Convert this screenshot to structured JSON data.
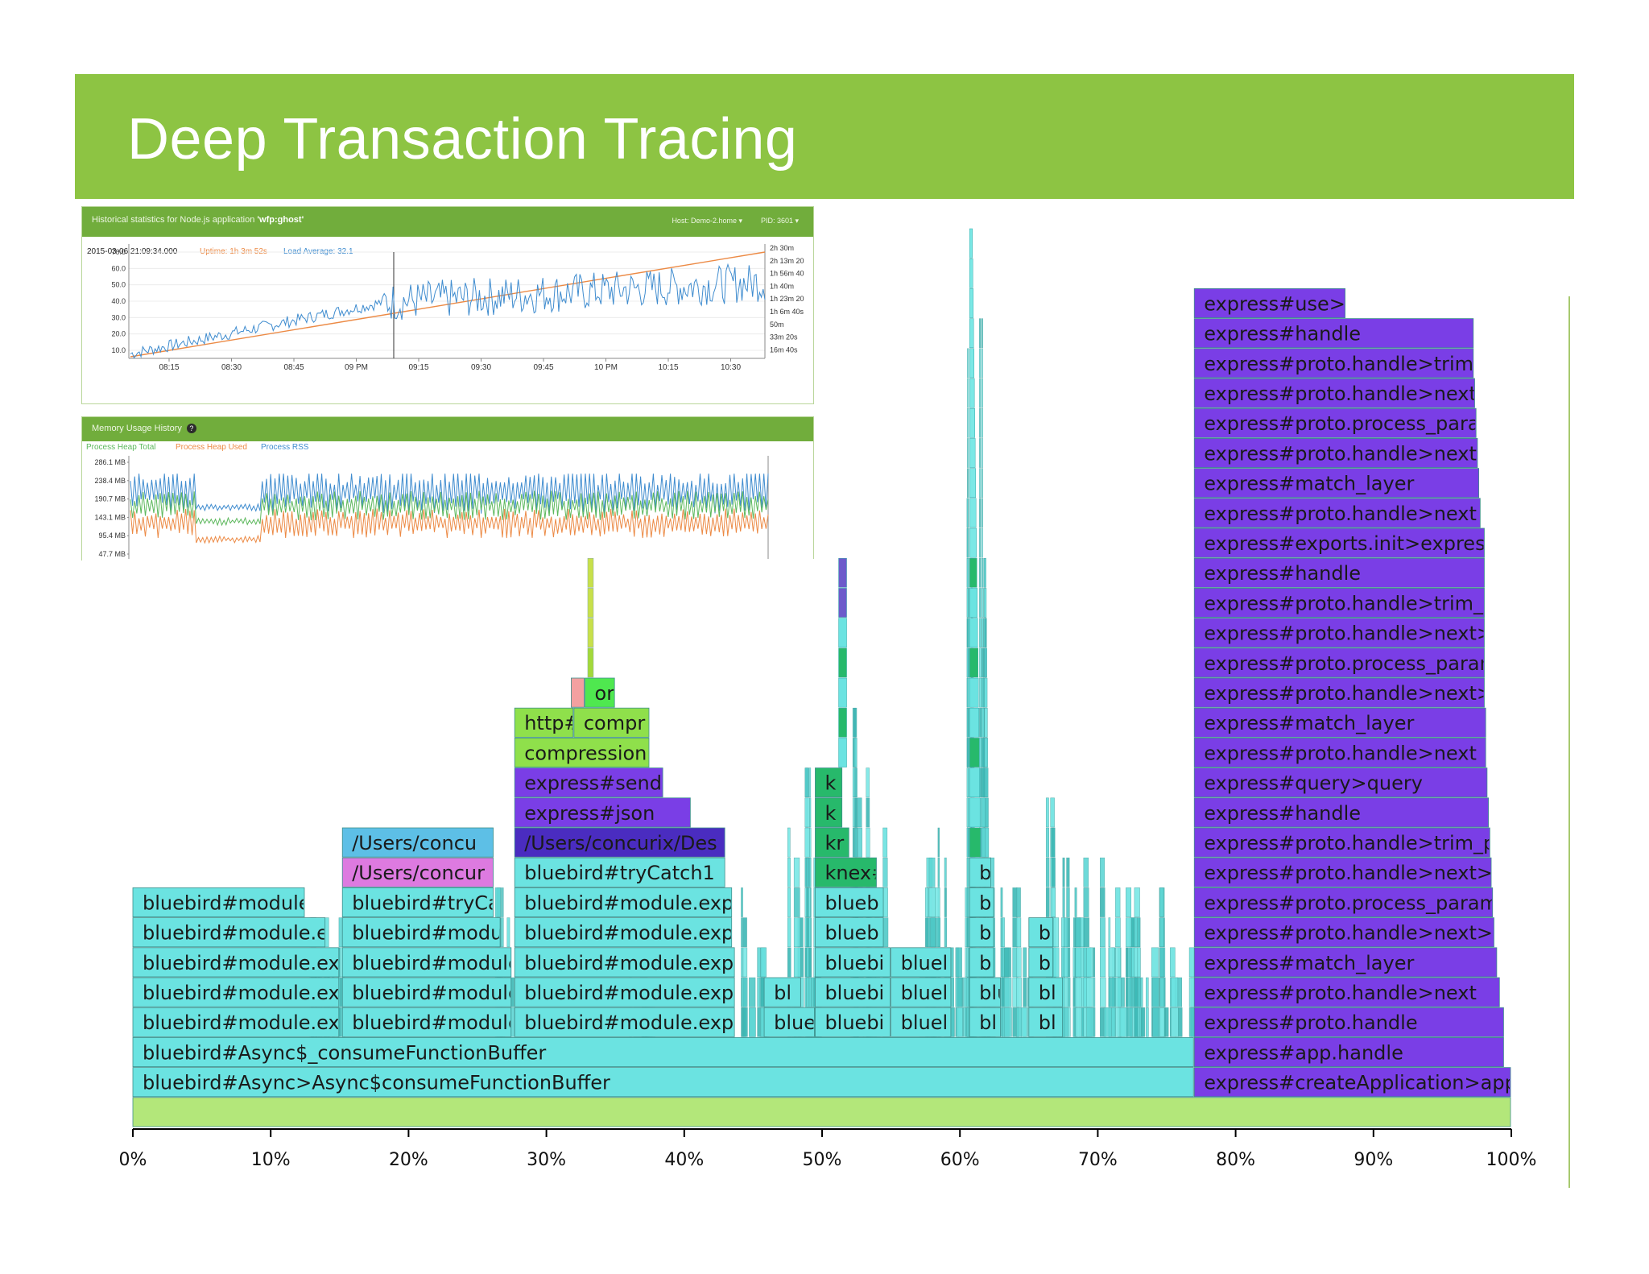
{
  "slide": {
    "title": "Deep Transaction Tracing"
  },
  "cpu_panel": {
    "header_text": "Historical statistics for Node.js application ",
    "app_name": "'wfp:ghost'",
    "host": "Host: Demo-2.home ▾",
    "pid": "PID: 3601 ▾",
    "timestamp": "2015-03-06 21:09:34.000",
    "uptime": "Uptime: 1h 3m 52s",
    "load": "Load Average: 32.1"
  },
  "memory_panel": {
    "title": "Memory Usage History",
    "legend": [
      "Process Heap Total",
      "Process Heap Used",
      "Process RSS"
    ]
  },
  "chart_data": [
    {
      "type": "line",
      "y_ticks": [
        "70.0",
        "60.0",
        "50.0",
        "40.0",
        "30.0",
        "20.0",
        "10.0"
      ],
      "y2_ticks": [
        "2h 30m",
        "2h 13m 20",
        "1h 56m 40",
        "1h 40m",
        "1h 23m 20",
        "1h 6m 40s",
        "50m",
        "33m 20s",
        "16m 40s"
      ],
      "x_ticks": [
        "08:15",
        "08:30",
        "08:45",
        "09 PM",
        "09:15",
        "09:30",
        "09:45",
        "10 PM",
        "10:15",
        "10:30"
      ],
      "ylim": [
        0,
        70
      ],
      "series": [
        {
          "name": "Load Average",
          "color": "#3f8ccf"
        },
        {
          "name": "Uptime",
          "color": "#ec8a45"
        }
      ]
    },
    {
      "type": "line",
      "y_ticks": [
        "286.1 MB",
        "238.4 MB",
        "190.7 MB",
        "143.1 MB",
        "95.4 MB",
        "47.7 MB"
      ],
      "series": [
        {
          "name": "Process Heap Total",
          "color": "#5cb85c"
        },
        {
          "name": "Process Heap Used",
          "color": "#ec8a45"
        },
        {
          "name": "Process RSS",
          "color": "#3f8ccf"
        }
      ]
    },
    {
      "type": "flame",
      "x_ticks": [
        "0%",
        "10%",
        "20%",
        "30%",
        "40%",
        "50%",
        "60%",
        "70%",
        "80%",
        "90%",
        "100%"
      ],
      "frames": [
        {
          "label": "",
          "x0": 0,
          "x1": 100,
          "depth": 0,
          "color": "#b3e77a"
        },
        {
          "label": "bluebird#Async>Async$consumeFunctionBuffer",
          "x0": 0,
          "x1": 77,
          "depth": 1,
          "color": "#6be3e1"
        },
        {
          "label": "bluebird#Async$_consumeFunctionBuffer",
          "x0": 0,
          "x1": 77,
          "depth": 2,
          "color": "#6be3e1"
        },
        {
          "label": "bluebird#module.ex|",
          "x0": 0,
          "x1": 15,
          "depth": 3,
          "color": "#6be3e1"
        },
        {
          "label": "bluebird#module.ex",
          "x0": 0,
          "x1": 15,
          "depth": 4,
          "color": "#6be3e1"
        },
        {
          "label": "bluebird#module.ex",
          "x0": 0,
          "x1": 15,
          "depth": 5,
          "color": "#6be3e1"
        },
        {
          "label": "bluebird#module.e",
          "x0": 0,
          "x1": 14,
          "depth": 6,
          "color": "#6be3e1"
        },
        {
          "label": "bluebird#module",
          "x0": 0,
          "x1": 12.5,
          "depth": 7,
          "color": "#6be3e1"
        },
        {
          "label": "bluebird#module",
          "x0": 15.2,
          "x1": 27.5,
          "depth": 3,
          "color": "#6be3e1"
        },
        {
          "label": "bluebird#module",
          "x0": 15.2,
          "x1": 27.5,
          "depth": 4,
          "color": "#6be3e1"
        },
        {
          "label": "bluebird#module",
          "x0": 15.2,
          "x1": 27.5,
          "depth": 5,
          "color": "#6be3e1"
        },
        {
          "label": "bluebird#modu",
          "x0": 15.2,
          "x1": 26.7,
          "depth": 6,
          "color": "#6be3e1"
        },
        {
          "label": "bluebird#tryCa",
          "x0": 15.2,
          "x1": 26.2,
          "depth": 7,
          "color": "#6be3e1"
        },
        {
          "label": "/Users/concur",
          "x0": 15.2,
          "x1": 26.2,
          "depth": 8,
          "color": "#dd7ae0"
        },
        {
          "label": "/Users/concu",
          "x0": 15.2,
          "x1": 26.2,
          "depth": 9,
          "color": "#5dbfe6"
        },
        {
          "label": "bluebird#module.exp",
          "x0": 27.7,
          "x1": 43.7,
          "depth": 3,
          "color": "#6be3e1"
        },
        {
          "label": "bluebird#module.exp",
          "x0": 27.7,
          "x1": 43.7,
          "depth": 4,
          "color": "#6be3e1"
        },
        {
          "label": "bluebird#module.exp",
          "x0": 27.7,
          "x1": 43.7,
          "depth": 5,
          "color": "#6be3e1"
        },
        {
          "label": "bluebird#module.exp",
          "x0": 27.7,
          "x1": 43.5,
          "depth": 6,
          "color": "#6be3e1"
        },
        {
          "label": "bluebird#module.exp",
          "x0": 27.7,
          "x1": 43.5,
          "depth": 7,
          "color": "#6be3e1"
        },
        {
          "label": "bluebird#tryCatch1",
          "x0": 27.7,
          "x1": 43,
          "depth": 8,
          "color": "#6be3e1"
        },
        {
          "label": "/Users/concurix/Des",
          "x0": 27.7,
          "x1": 43,
          "depth": 9,
          "color": "#4a2cc0"
        },
        {
          "label": "express#json",
          "x0": 27.7,
          "x1": 40.5,
          "depth": 10,
          "color": "#7a3ee6"
        },
        {
          "label": "express#send",
          "x0": 27.7,
          "x1": 38.5,
          "depth": 11,
          "color": "#7a3ee6"
        },
        {
          "label": "compression",
          "x0": 27.7,
          "x1": 37.5,
          "depth": 12,
          "color": "#8fe04b"
        },
        {
          "label": "http#",
          "x0": 27.7,
          "x1": 32,
          "depth": 13,
          "color": "#8fe04b"
        },
        {
          "label": "compr",
          "x0": 32,
          "x1": 37.5,
          "depth": 13,
          "color": "#8fe04b"
        },
        {
          "label": "",
          "x0": 31.8,
          "x1": 32.8,
          "depth": 14,
          "color": "#f3a0a0"
        },
        {
          "label": "or",
          "x0": 32.8,
          "x1": 35,
          "depth": 14,
          "color": "#4fe84f"
        },
        {
          "label": "blue",
          "x0": 45.8,
          "x1": 49.5,
          "depth": 3,
          "color": "#6be3e1"
        },
        {
          "label": "bl",
          "x0": 45.8,
          "x1": 48.5,
          "depth": 4,
          "color": "#6be3e1"
        },
        {
          "label": "bluebi",
          "x0": 49.5,
          "x1": 55,
          "depth": 3,
          "color": "#6be3e1"
        },
        {
          "label": "bluebi",
          "x0": 49.5,
          "x1": 55,
          "depth": 4,
          "color": "#6be3e1"
        },
        {
          "label": "bluebi",
          "x0": 49.5,
          "x1": 55,
          "depth": 5,
          "color": "#6be3e1"
        },
        {
          "label": "blueb",
          "x0": 49.5,
          "x1": 54.5,
          "depth": 6,
          "color": "#6be3e1"
        },
        {
          "label": "blueb",
          "x0": 49.5,
          "x1": 54.5,
          "depth": 7,
          "color": "#6be3e1"
        },
        {
          "label": "knex#",
          "x0": 49.5,
          "x1": 54,
          "depth": 8,
          "color": "#27b96b"
        },
        {
          "label": "kr",
          "x0": 49.5,
          "x1": 52,
          "depth": 9,
          "color": "#27b96b"
        },
        {
          "label": "k",
          "x0": 49.5,
          "x1": 51.5,
          "depth": 10,
          "color": "#27b96b"
        },
        {
          "label": "k",
          "x0": 49.5,
          "x1": 51.5,
          "depth": 11,
          "color": "#27b96b"
        },
        {
          "label": "bluel",
          "x0": 55,
          "x1": 59.4,
          "depth": 3,
          "color": "#6be3e1"
        },
        {
          "label": "bluel",
          "x0": 55,
          "x1": 59.4,
          "depth": 4,
          "color": "#6be3e1"
        },
        {
          "label": "bluel",
          "x0": 55,
          "x1": 59.4,
          "depth": 5,
          "color": "#6be3e1"
        },
        {
          "label": "bl",
          "x0": 60.7,
          "x1": 63,
          "depth": 3,
          "color": "#6be3e1"
        },
        {
          "label": "blu",
          "x0": 60.7,
          "x1": 63,
          "depth": 4,
          "color": "#6be3e1"
        },
        {
          "label": "bl",
          "x0": 60.7,
          "x1": 62.5,
          "depth": 5,
          "color": "#6be3e1"
        },
        {
          "label": "bl",
          "x0": 60.7,
          "x1": 62.5,
          "depth": 6,
          "color": "#6be3e1"
        },
        {
          "label": "bl",
          "x0": 60.7,
          "x1": 62.5,
          "depth": 7,
          "color": "#6be3e1"
        },
        {
          "label": "b",
          "x0": 60.7,
          "x1": 62.3,
          "depth": 8,
          "color": "#6be3e1"
        },
        {
          "label": "bl",
          "x0": 65,
          "x1": 67.5,
          "depth": 3,
          "color": "#6be3e1"
        },
        {
          "label": "bl",
          "x0": 65,
          "x1": 67.5,
          "depth": 4,
          "color": "#6be3e1"
        },
        {
          "label": "b",
          "x0": 65,
          "x1": 66.8,
          "depth": 5,
          "color": "#6be3e1"
        },
        {
          "label": "b",
          "x0": 65,
          "x1": 66.8,
          "depth": 6,
          "color": "#6be3e1"
        },
        {
          "label": "express#createApplication>app",
          "x0": 77,
          "x1": 100,
          "depth": 1,
          "color": "#7a3ee6"
        },
        {
          "label": "express#app.handle",
          "x0": 77,
          "x1": 99.5,
          "depth": 2,
          "color": "#7a3ee6"
        },
        {
          "label": "express#proto.handle",
          "x0": 77,
          "x1": 99.5,
          "depth": 3,
          "color": "#7a3ee6"
        },
        {
          "label": "express#proto.handle>next",
          "x0": 77,
          "x1": 99.2,
          "depth": 4,
          "color": "#7a3ee6"
        },
        {
          "label": "express#match_layer",
          "x0": 77,
          "x1": 99,
          "depth": 5,
          "color": "#7a3ee6"
        },
        {
          "label": "express#proto.handle>next>s",
          "x0": 77,
          "x1": 98.8,
          "depth": 6,
          "color": "#7a3ee6"
        },
        {
          "label": "express#proto.process_param",
          "x0": 77,
          "x1": 98.7,
          "depth": 7,
          "color": "#7a3ee6"
        },
        {
          "label": "express#proto.handle>next>s",
          "x0": 77,
          "x1": 98.6,
          "depth": 8,
          "color": "#7a3ee6"
        },
        {
          "label": "express#proto.handle>trim_p",
          "x0": 77,
          "x1": 98.5,
          "depth": 9,
          "color": "#7a3ee6"
        },
        {
          "label": "express#handle",
          "x0": 77,
          "x1": 98.4,
          "depth": 10,
          "color": "#7a3ee6"
        },
        {
          "label": "express#query>query",
          "x0": 77,
          "x1": 98.3,
          "depth": 11,
          "color": "#7a3ee6"
        },
        {
          "label": "express#proto.handle>next",
          "x0": 77,
          "x1": 98.2,
          "depth": 12,
          "color": "#7a3ee6"
        },
        {
          "label": "express#match_layer",
          "x0": 77,
          "x1": 98.2,
          "depth": 13,
          "color": "#7a3ee6"
        },
        {
          "label": "express#proto.handle>next>",
          "x0": 77,
          "x1": 98.1,
          "depth": 14,
          "color": "#7a3ee6"
        },
        {
          "label": "express#proto.process_param",
          "x0": 77,
          "x1": 98.1,
          "depth": 15,
          "color": "#7a3ee6"
        },
        {
          "label": "express#proto.handle>next>",
          "x0": 77,
          "x1": 98.1,
          "depth": 16,
          "color": "#7a3ee6"
        },
        {
          "label": "express#proto.handle>trim_p",
          "x0": 77,
          "x1": 98.1,
          "depth": 17,
          "color": "#7a3ee6"
        },
        {
          "label": "express#handle",
          "x0": 77,
          "x1": 98.1,
          "depth": 18,
          "color": "#7a3ee6"
        },
        {
          "label": "express#exports.init>express",
          "x0": 77,
          "x1": 98.1,
          "depth": 19,
          "color": "#7a3ee6"
        },
        {
          "label": "express#proto.handle>next",
          "x0": 77,
          "x1": 97.8,
          "depth": 20,
          "color": "#7a3ee6"
        },
        {
          "label": "express#match_layer",
          "x0": 77,
          "x1": 97.7,
          "depth": 21,
          "color": "#7a3ee6"
        },
        {
          "label": "express#proto.handle>next>",
          "x0": 77,
          "x1": 97.6,
          "depth": 22,
          "color": "#7a3ee6"
        },
        {
          "label": "express#proto.process_para",
          "x0": 77,
          "x1": 97.5,
          "depth": 23,
          "color": "#7a3ee6"
        },
        {
          "label": "express#proto.handle>next>",
          "x0": 77,
          "x1": 97.4,
          "depth": 24,
          "color": "#7a3ee6"
        },
        {
          "label": "express#proto.handle>trim_",
          "x0": 77,
          "x1": 97.3,
          "depth": 25,
          "color": "#7a3ee6"
        },
        {
          "label": "express#handle",
          "x0": 77,
          "x1": 97.3,
          "depth": 26,
          "color": "#7a3ee6"
        },
        {
          "label": "express#use>fr",
          "x0": 77,
          "x1": 88,
          "depth": 27,
          "color": "#7a3ee6"
        }
      ]
    }
  ]
}
